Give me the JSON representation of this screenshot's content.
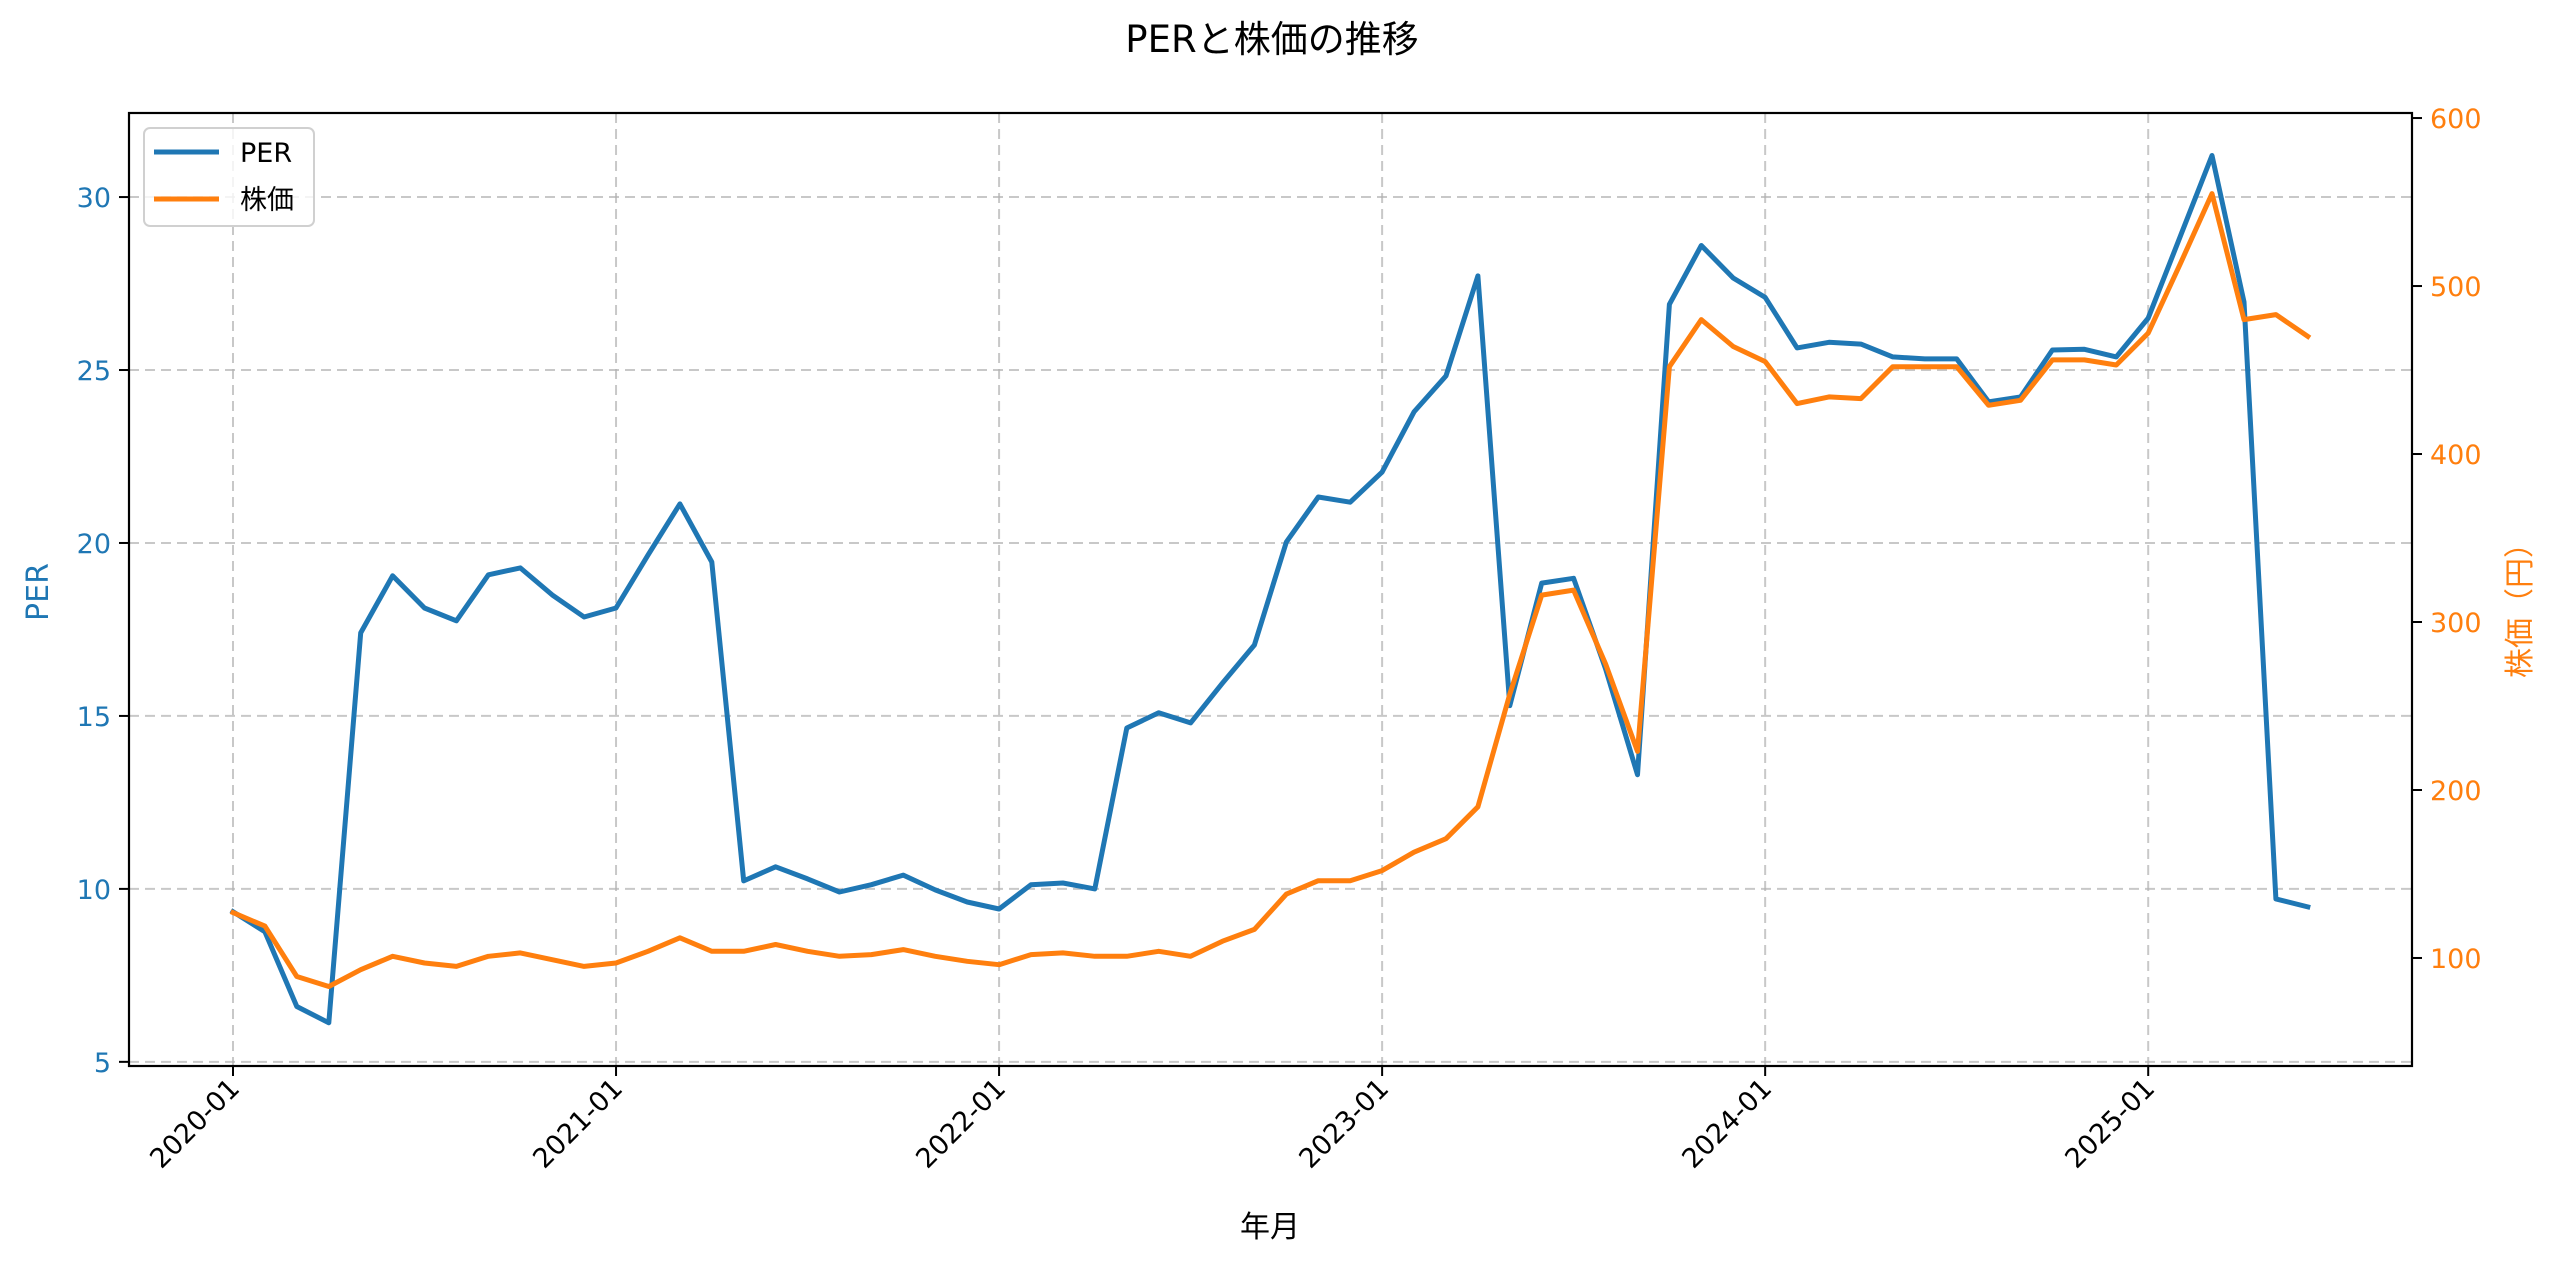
{
  "chart_data": {
    "type": "line",
    "title": "PERと株価の推移",
    "xlabel": "年月",
    "ylabel": "PER",
    "ylabel_right": "株価（円）",
    "ylim": [
      4.88,
      32.43
    ],
    "ylim_right": [
      35.7,
      603
    ],
    "yticks": [
      5,
      10,
      15,
      20,
      25,
      30
    ],
    "yticks_right": [
      100,
      200,
      300,
      400,
      500,
      600
    ],
    "xtick_labels": [
      "2020-01",
      "2021-01",
      "2022-01",
      "2023-01",
      "2024-01",
      "2025-01"
    ],
    "grid": true,
    "legend_position": "upper left",
    "colors": {
      "PER": "#1f77b4",
      "株価": "#ff7f0e"
    },
    "x": [
      "2020-01",
      "2020-02",
      "2020-03",
      "2020-04",
      "2020-05",
      "2020-06",
      "2020-07",
      "2020-08",
      "2020-09",
      "2020-10",
      "2020-11",
      "2020-12",
      "2021-01",
      "2021-02",
      "2021-03",
      "2021-04",
      "2021-05",
      "2021-06",
      "2021-07",
      "2021-08",
      "2021-09",
      "2021-10",
      "2021-11",
      "2021-12",
      "2022-01",
      "2022-02",
      "2022-03",
      "2022-04",
      "2022-05",
      "2022-06",
      "2022-07",
      "2022-08",
      "2022-09",
      "2022-10",
      "2022-11",
      "2022-12",
      "2023-01",
      "2023-02",
      "2023-03",
      "2023-04",
      "2023-05",
      "2023-06",
      "2023-07",
      "2023-08",
      "2023-09",
      "2023-10",
      "2023-11",
      "2023-12",
      "2024-01",
      "2024-02",
      "2024-03",
      "2024-04",
      "2024-05",
      "2024-06",
      "2024-07",
      "2024-08",
      "2024-09",
      "2024-10",
      "2024-11",
      "2024-12",
      "2025-01",
      "2025-02",
      "2025-03",
      "2025-04",
      "2025-05",
      "2025-06"
    ],
    "series": [
      {
        "name": "PER",
        "axis": "left",
        "values": [
          9.34,
          8.76,
          6.6,
          6.13,
          17.4,
          19.05,
          18.12,
          17.75,
          19.08,
          19.28,
          18.5,
          17.86,
          18.12,
          19.65,
          21.13,
          19.45,
          10.23,
          10.64,
          10.29,
          9.91,
          10.12,
          10.4,
          9.97,
          9.62,
          9.42,
          10.12,
          10.17,
          10.0,
          14.65,
          15.09,
          14.8,
          15.95,
          17.05,
          20.03,
          21.33,
          21.18,
          22.05,
          23.79,
          24.83,
          27.72,
          15.3,
          18.84,
          18.98,
          16.36,
          13.3,
          26.9,
          28.6,
          27.66,
          27.1,
          25.64,
          25.8,
          25.75,
          25.38,
          25.32,
          25.32,
          24.08,
          24.22,
          25.58,
          25.6,
          25.38,
          26.5,
          28.85,
          31.2,
          26.97,
          9.71,
          9.48
        ]
      },
      {
        "name": "株価",
        "axis": "right",
        "values": [
          127,
          119,
          89,
          83,
          93,
          101,
          97,
          95,
          101,
          103,
          99,
          95,
          97,
          104,
          112,
          104,
          104,
          108,
          104,
          101,
          102,
          105,
          101,
          98,
          96,
          102,
          103,
          101,
          101,
          104,
          101,
          110,
          117,
          138,
          146,
          146,
          152,
          163,
          171,
          190,
          257,
          316,
          319,
          275,
          223,
          452,
          480,
          464,
          455,
          430,
          434,
          433,
          452,
          452,
          452,
          429,
          432,
          456,
          456,
          453,
          472,
          513,
          555,
          480,
          483,
          470
        ]
      }
    ]
  },
  "legend": {
    "items": [
      {
        "label": "PER"
      },
      {
        "label": "株価"
      }
    ]
  }
}
